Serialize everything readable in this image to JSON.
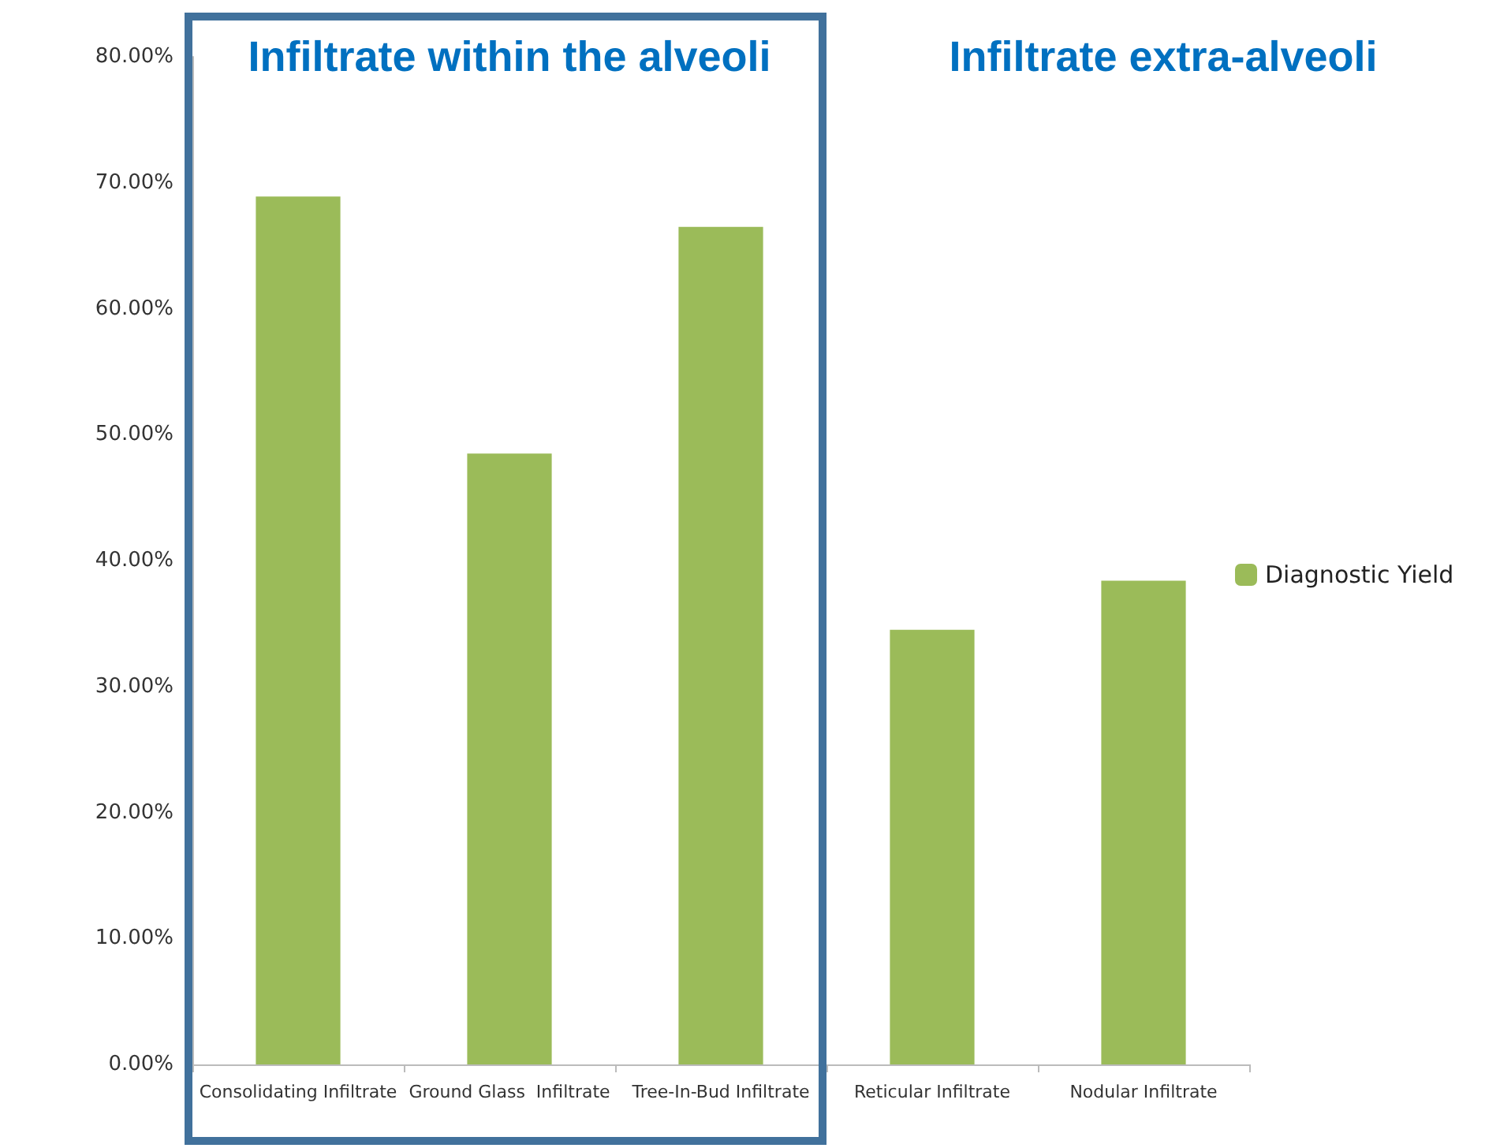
{
  "chart_data": {
    "type": "bar",
    "categories": [
      "Consolidating Infiltrate",
      "Ground Glass  Infiltrate",
      "Tree-In-Bud Infiltrate",
      "Reticular Infiltrate",
      "Nodular Infiltrate"
    ],
    "series": [
      {
        "name": "Diagnostic Yield",
        "color": "#9bbb59",
        "values": [
          68.9,
          48.5,
          66.5,
          34.5,
          38.4
        ]
      }
    ],
    "ylim": [
      0,
      80
    ],
    "yticks": [
      {
        "value": 0,
        "label": "0.00%"
      },
      {
        "value": 10,
        "label": "10.00%"
      },
      {
        "value": 20,
        "label": "20.00%"
      },
      {
        "value": 30,
        "label": "30.00%"
      },
      {
        "value": 40,
        "label": "40.00%"
      },
      {
        "value": 50,
        "label": "50.00%"
      },
      {
        "value": 60,
        "label": "60.00%"
      },
      {
        "value": 70,
        "label": "70.00%"
      },
      {
        "value": 80,
        "label": "80.00%"
      }
    ],
    "annotations": [
      "Infiltrate within the alveoli",
      "Infiltrate extra-alveoli"
    ],
    "grid": false,
    "legend": "right"
  }
}
